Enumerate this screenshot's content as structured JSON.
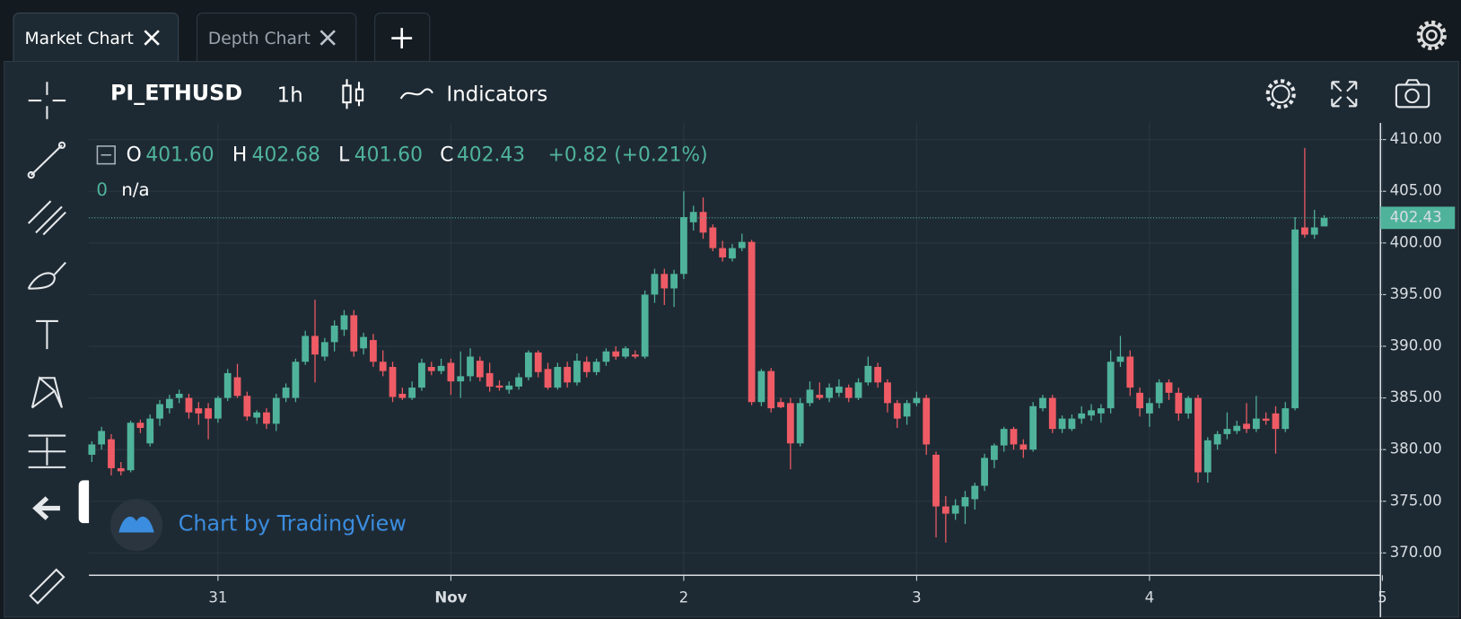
{
  "ui": {
    "tabs": [
      "Market Chart",
      "Depth Chart"
    ],
    "symbol": "PI_ETHUSD",
    "interval": "1h",
    "indicators": "Indicators",
    "watermark": "Chart by TradingView",
    "legend": {
      "o_key": "O",
      "o": "401.60",
      "h_key": "H",
      "h": "402.68",
      "l_key": "L",
      "l": "401.60",
      "c_key": "C",
      "c": "402.43",
      "change": "+0.82 (+0.21%)",
      "vol_key": "0",
      "vol": "n/a"
    },
    "last_price_label": "402.43"
  },
  "chart_data": {
    "type": "candlestick",
    "up_color": "#4fb39b",
    "down_color": "#ef5b65",
    "grid": true,
    "ylim": [
      367.84,
      411.62
    ],
    "yticks": [
      {
        "value": 370,
        "label": "370.00"
      },
      {
        "value": 375,
        "label": "375.00"
      },
      {
        "value": 380,
        "label": "380.00"
      },
      {
        "value": 385,
        "label": "385.00"
      },
      {
        "value": 390,
        "label": "390.00"
      },
      {
        "value": 395,
        "label": "395.00"
      },
      {
        "value": 400,
        "label": "400.00"
      },
      {
        "value": 405,
        "label": "405.00"
      },
      {
        "value": 410,
        "label": "410.00"
      }
    ],
    "xlim": [
      -0.3,
      132.8
    ],
    "xticks": [
      {
        "value": 13,
        "label": "31"
      },
      {
        "value": 37,
        "label": "Nov"
      },
      {
        "value": 61,
        "label": "2"
      },
      {
        "value": 85,
        "label": "3"
      },
      {
        "value": 109,
        "label": "4"
      },
      {
        "value": 133,
        "label": "5"
      }
    ],
    "ohlc": [
      [
        379.5,
        380.8,
        378.8,
        380.5
      ],
      [
        380.5,
        382.2,
        380,
        381.8
      ],
      [
        381,
        381.5,
        377.5,
        378.2
      ],
      [
        378.2,
        378.8,
        377.5,
        377.9
      ],
      [
        378,
        382.8,
        377.8,
        382.6
      ],
      [
        382.6,
        382.9,
        381.6,
        382.1
      ],
      [
        380.6,
        383.4,
        380.3,
        383
      ],
      [
        383,
        384.8,
        382.3,
        384.4
      ],
      [
        384,
        385.3,
        383.5,
        384.9
      ],
      [
        385,
        385.8,
        384.5,
        385.4
      ],
      [
        385,
        385.4,
        383,
        383.6
      ],
      [
        384,
        384.6,
        382.4,
        383.5
      ],
      [
        384,
        384.5,
        381,
        383
      ],
      [
        383,
        385.2,
        382.6,
        385
      ],
      [
        385,
        387.8,
        384.7,
        387.4
      ],
      [
        387,
        388.3,
        385,
        385.2
      ],
      [
        385.2,
        385.6,
        382.8,
        383.2
      ],
      [
        383.1,
        383.8,
        382.5,
        383.6
      ],
      [
        383.6,
        384,
        382,
        382.5
      ],
      [
        382.5,
        385.4,
        381.8,
        385
      ],
      [
        385,
        386.4,
        384.6,
        386
      ],
      [
        385,
        388.8,
        384.6,
        388.5
      ],
      [
        388.5,
        391.5,
        388.2,
        391
      ],
      [
        391,
        394.5,
        386.5,
        389.2
      ],
      [
        389,
        390.8,
        388.6,
        390.4
      ],
      [
        390.4,
        392.5,
        389.5,
        392
      ],
      [
        391.6,
        393.5,
        391,
        393
      ],
      [
        393,
        393.5,
        389,
        389.5
      ],
      [
        389.8,
        391.3,
        389.2,
        390.9
      ],
      [
        390.6,
        391.2,
        388,
        388.5
      ],
      [
        388.5,
        389.6,
        387.1,
        387.6
      ],
      [
        388,
        388.5,
        384.6,
        385.1
      ],
      [
        385.4,
        386,
        384.8,
        385
      ],
      [
        385,
        386.6,
        384.8,
        386
      ],
      [
        386,
        388.8,
        385.7,
        388.4
      ],
      [
        388,
        388.5,
        387.2,
        387.6
      ],
      [
        387.6,
        388.8,
        387.3,
        388.1
      ],
      [
        388.4,
        388.8,
        385.3,
        386.6
      ],
      [
        386.6,
        389.5,
        385,
        387.1
      ],
      [
        387.1,
        389.8,
        386.6,
        389
      ],
      [
        388.6,
        389,
        386.6,
        387
      ],
      [
        387.4,
        388.4,
        385.6,
        386.1
      ],
      [
        386.2,
        386.7,
        385.7,
        386
      ],
      [
        385.8,
        386.6,
        385.4,
        386.2
      ],
      [
        386.1,
        387.4,
        385.8,
        387
      ],
      [
        387,
        389.6,
        386.7,
        389.4
      ],
      [
        389.4,
        389.6,
        387,
        387.5
      ],
      [
        387.8,
        388.4,
        385.8,
        386
      ],
      [
        386,
        388.4,
        385.8,
        388
      ],
      [
        388,
        388.5,
        386,
        386.5
      ],
      [
        386.5,
        389.3,
        386.2,
        388.6
      ],
      [
        388.5,
        389,
        387,
        387.5
      ],
      [
        387.5,
        388.8,
        387.2,
        388.5
      ],
      [
        388.5,
        389.8,
        388.1,
        389.5
      ],
      [
        389.5,
        390,
        388.7,
        389
      ],
      [
        389,
        390,
        388.8,
        389.8
      ],
      [
        389.2,
        389.6,
        388.8,
        389
      ],
      [
        389,
        395.4,
        388.8,
        395
      ],
      [
        395,
        397.5,
        394.2,
        397
      ],
      [
        397,
        397.5,
        394,
        395.6
      ],
      [
        395.6,
        397.4,
        393.8,
        397
      ],
      [
        397,
        405,
        396.5,
        402.5
      ],
      [
        402,
        403.6,
        401.2,
        403
      ],
      [
        403,
        404.4,
        400.4,
        401
      ],
      [
        401.5,
        401.8,
        399.2,
        399.5
      ],
      [
        399.5,
        400.2,
        398.2,
        398.6
      ],
      [
        398.5,
        399.9,
        398.2,
        399.5
      ],
      [
        399.5,
        400.9,
        399.2,
        400.1
      ],
      [
        400.1,
        400.3,
        384.3,
        384.6
      ],
      [
        384.6,
        387.8,
        384.2,
        387.6
      ],
      [
        387.6,
        387.9,
        383.6,
        384
      ],
      [
        384.6,
        385,
        384,
        384.1
      ],
      [
        384.5,
        385,
        378.1,
        380.6
      ],
      [
        380.6,
        385,
        380.3,
        384.5
      ],
      [
        384.5,
        386.6,
        384.2,
        385.8
      ],
      [
        385.3,
        386.5,
        384.8,
        385
      ],
      [
        385,
        386.4,
        384.6,
        386
      ],
      [
        385.5,
        386.8,
        385.1,
        386.1
      ],
      [
        386,
        386.3,
        384.6,
        385
      ],
      [
        385,
        386.9,
        384.8,
        386.5
      ],
      [
        386.5,
        389,
        386.2,
        388.1
      ],
      [
        388,
        388.4,
        386,
        386.5
      ],
      [
        386.5,
        386.8,
        383.6,
        384.5
      ],
      [
        384.5,
        384.8,
        382.1,
        383
      ],
      [
        383.2,
        384.8,
        382.4,
        384.5
      ],
      [
        384.5,
        385.6,
        384.2,
        385
      ],
      [
        385,
        385.3,
        379.5,
        380.5
      ],
      [
        379.5,
        379.8,
        371.5,
        374.5
      ],
      [
        374.5,
        375.5,
        371,
        373.8
      ],
      [
        373.8,
        375.2,
        373.2,
        374.6
      ],
      [
        374.5,
        376,
        372.8,
        375.4
      ],
      [
        375.2,
        376.8,
        374.2,
        376.5
      ],
      [
        376.5,
        379.6,
        376,
        379.2
      ],
      [
        379,
        380.6,
        378.2,
        380.4
      ],
      [
        380.4,
        382.2,
        379.8,
        382
      ],
      [
        382,
        382.2,
        380,
        380.5
      ],
      [
        380.5,
        381,
        379.2,
        380
      ],
      [
        380,
        384.6,
        379.8,
        384.2
      ],
      [
        384,
        385.3,
        383.7,
        385
      ],
      [
        385,
        385.3,
        381.6,
        382
      ],
      [
        382,
        383.3,
        381.6,
        383
      ],
      [
        382,
        383.4,
        381.8,
        383
      ],
      [
        383,
        384.2,
        382.5,
        383.5
      ],
      [
        383.3,
        384.4,
        382.8,
        383.8
      ],
      [
        383.5,
        384.4,
        382.6,
        384
      ],
      [
        384,
        389.6,
        383.5,
        388.5
      ],
      [
        388.5,
        391,
        388,
        389
      ],
      [
        389,
        389.6,
        385.2,
        386
      ],
      [
        385.5,
        386,
        383.2,
        384
      ],
      [
        383.5,
        385,
        382.2,
        384.5
      ],
      [
        384.5,
        386.8,
        384,
        386.5
      ],
      [
        386.5,
        386.8,
        384.8,
        385.5
      ],
      [
        385.5,
        386,
        382.8,
        383.5
      ],
      [
        383.5,
        385.2,
        383,
        385
      ],
      [
        385,
        385.3,
        376.8,
        377.8
      ],
      [
        377.8,
        381.2,
        376.8,
        380.9
      ],
      [
        380.5,
        381.8,
        380,
        381.5
      ],
      [
        381.5,
        383.6,
        381,
        382
      ],
      [
        381.8,
        382.8,
        381.5,
        382.3
      ],
      [
        382.5,
        384.5,
        381.6,
        382
      ],
      [
        382,
        385.2,
        381.7,
        383
      ],
      [
        383,
        383.6,
        382.4,
        382.8
      ],
      [
        383.5,
        384.2,
        379.6,
        382
      ],
      [
        382,
        384.6,
        381.7,
        384
      ],
      [
        384,
        402.5,
        383.8,
        401.3
      ],
      [
        401.5,
        409.2,
        400.5,
        400.8
      ],
      [
        400.8,
        403.2,
        400.4,
        401.5
      ],
      [
        401.6,
        402.68,
        401.6,
        402.43
      ]
    ]
  }
}
